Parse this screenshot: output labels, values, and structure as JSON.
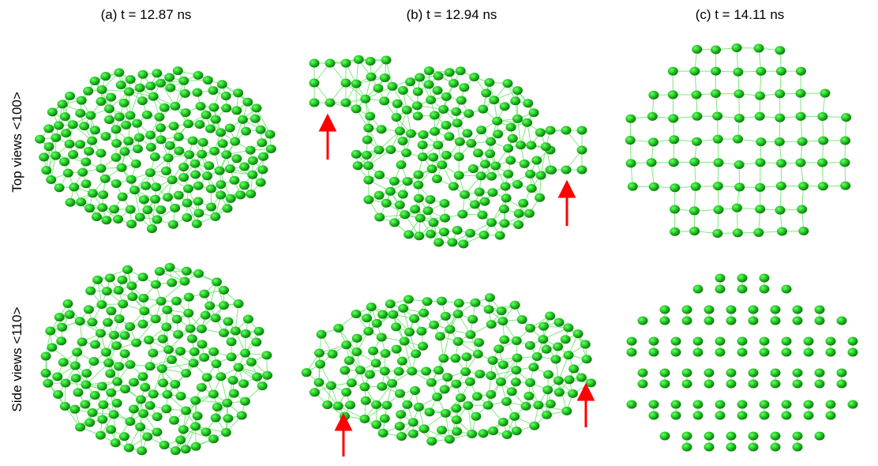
{
  "columns": [
    "(a) t = 12.87 ns",
    "(b) t = 12.94 ns",
    "(c) t = 14.11 ns"
  ],
  "rows": [
    "Top views <100>",
    "Side views <110>"
  ]
}
